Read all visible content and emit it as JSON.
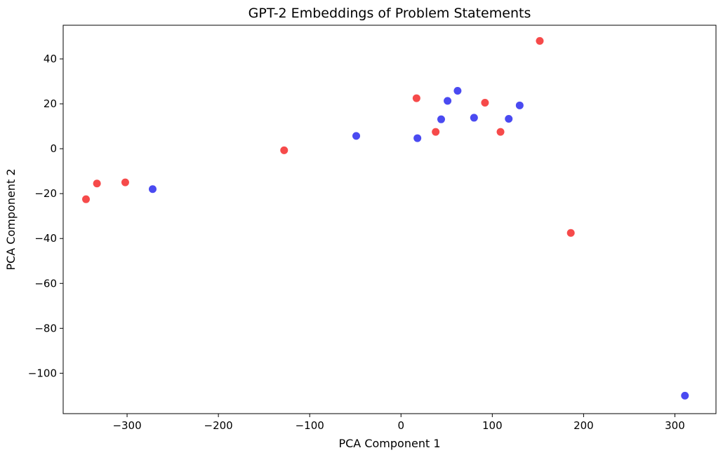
{
  "chart_data": {
    "type": "scatter",
    "title": "GPT-2 Embeddings of Problem Statements",
    "xlabel": "PCA Component 1",
    "ylabel": "PCA Component 2",
    "xlim": [
      -370,
      345
    ],
    "ylim": [
      -118,
      55
    ],
    "xticks": [
      -300,
      -200,
      -100,
      0,
      100,
      200,
      300
    ],
    "yticks": [
      -100,
      -80,
      -60,
      -40,
      -20,
      0,
      20,
      40
    ],
    "grid": false,
    "series": [
      {
        "color": "#f54040",
        "points": [
          {
            "x": 152,
            "y": 48
          },
          {
            "x": 17,
            "y": 22.5
          },
          {
            "x": 92,
            "y": 20.5
          },
          {
            "x": 38,
            "y": 7.5
          },
          {
            "x": 109,
            "y": 7.5
          },
          {
            "x": -128,
            "y": -0.7
          },
          {
            "x": -302,
            "y": -15
          },
          {
            "x": -333,
            "y": -15.5
          },
          {
            "x": -345,
            "y": -22.5
          },
          {
            "x": 186,
            "y": -37.5
          }
        ]
      },
      {
        "color": "#4040f0",
        "points": [
          {
            "x": 62,
            "y": 25.8
          },
          {
            "x": 51,
            "y": 21.3
          },
          {
            "x": 130,
            "y": 19.3
          },
          {
            "x": 80,
            "y": 13.8
          },
          {
            "x": 118,
            "y": 13.3
          },
          {
            "x": 44,
            "y": 13.1
          },
          {
            "x": 18,
            "y": 4.7
          },
          {
            "x": -49,
            "y": 5.7
          },
          {
            "x": -272,
            "y": -18
          },
          {
            "x": 311,
            "y": -110
          }
        ]
      }
    ]
  }
}
